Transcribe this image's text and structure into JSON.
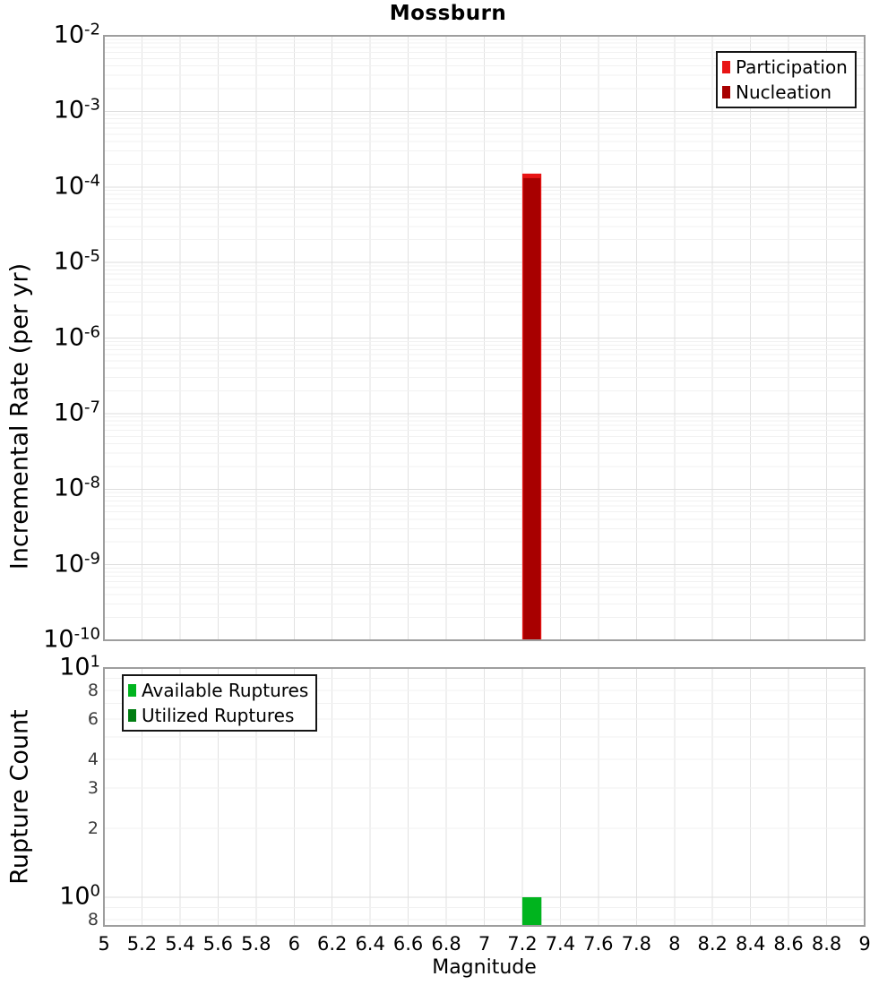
{
  "title": "Mossburn",
  "chart_data": [
    {
      "type": "bar",
      "panel": "incremental-rate",
      "ylabel": "Incremental Rate (per yr)",
      "yscale": "log",
      "ylim": [
        1e-10,
        0.01
      ],
      "xlim": [
        5,
        9
      ],
      "grid": true,
      "legend_position": "top-right",
      "legend": {
        "items": [
          {
            "label": "Participation",
            "color": "#e81414"
          },
          {
            "label": "Nucleation",
            "color": "#a80000"
          }
        ]
      },
      "y_ticks": [
        {
          "text": "10",
          "exp": "-2",
          "v": 0.01
        },
        {
          "text": "10",
          "exp": "-3",
          "v": 0.001
        },
        {
          "text": "10",
          "exp": "-4",
          "v": 0.0001
        },
        {
          "text": "10",
          "exp": "-5",
          "v": 1e-05
        },
        {
          "text": "10",
          "exp": "-6",
          "v": 1e-06
        },
        {
          "text": "10",
          "exp": "-7",
          "v": 1e-07
        },
        {
          "text": "10",
          "exp": "-8",
          "v": 1e-08
        },
        {
          "text": "10",
          "exp": "-9",
          "v": 1e-09
        },
        {
          "text": "10",
          "exp": "-10",
          "v": 1e-10
        }
      ],
      "y_minor_labels": [],
      "series": [
        {
          "name": "Participation",
          "color": "#e81414",
          "bins": [
            {
              "x_center": 7.25,
              "bin_width": 0.1,
              "value": 0.00015
            }
          ]
        },
        {
          "name": "Nucleation",
          "color": "#a80000",
          "bins": [
            {
              "x_center": 7.25,
              "bin_width": 0.1,
              "value": 0.00014
            }
          ]
        }
      ]
    },
    {
      "type": "bar",
      "panel": "rupture-count",
      "ylabel": "Rupture Count",
      "xlabel": "Magnitude",
      "yscale": "log",
      "ylim": [
        0.75,
        10
      ],
      "xlim": [
        5,
        9
      ],
      "grid": true,
      "legend_position": "top-left",
      "legend": {
        "items": [
          {
            "label": "Available Ruptures",
            "color": "#00b41e"
          },
          {
            "label": "Utilized Ruptures",
            "color": "#007d11"
          }
        ]
      },
      "y_ticks": [
        {
          "text": "10",
          "exp": "1",
          "v": 10
        },
        {
          "text": "10",
          "exp": "0",
          "v": 1
        }
      ],
      "y_minor_labels": [
        {
          "text": "8",
          "v": 8
        },
        {
          "text": "6",
          "v": 6
        },
        {
          "text": "4",
          "v": 4
        },
        {
          "text": "3",
          "v": 3
        },
        {
          "text": "2",
          "v": 2
        },
        {
          "text": "8",
          "v": 0.8
        }
      ],
      "x_ticks": [
        {
          "text": "5",
          "v": 5.0
        },
        {
          "text": "5.2",
          "v": 5.2
        },
        {
          "text": "5.4",
          "v": 5.4
        },
        {
          "text": "5.6",
          "v": 5.6
        },
        {
          "text": "5.8",
          "v": 5.8
        },
        {
          "text": "6",
          "v": 6.0
        },
        {
          "text": "6.2",
          "v": 6.2
        },
        {
          "text": "6.4",
          "v": 6.4
        },
        {
          "text": "6.6",
          "v": 6.6
        },
        {
          "text": "6.8",
          "v": 6.8
        },
        {
          "text": "7",
          "v": 7.0
        },
        {
          "text": "7.2",
          "v": 7.2
        },
        {
          "text": "7.4",
          "v": 7.4
        },
        {
          "text": "7.6",
          "v": 7.6
        },
        {
          "text": "7.8",
          "v": 7.8
        },
        {
          "text": "8",
          "v": 8.0
        },
        {
          "text": "8.2",
          "v": 8.2
        },
        {
          "text": "8.4",
          "v": 8.4
        },
        {
          "text": "8.6",
          "v": 8.6
        },
        {
          "text": "8.8",
          "v": 8.8
        },
        {
          "text": "9",
          "v": 9.0
        }
      ],
      "series": [
        {
          "name": "Utilized Ruptures",
          "color": "#007d11",
          "bins": [
            {
              "x_center": 7.25,
              "bin_width": 0.1,
              "value": 1
            }
          ]
        },
        {
          "name": "Available Ruptures",
          "color": "#00b41e",
          "bins": [
            {
              "x_center": 7.25,
              "bin_width": 0.1,
              "value": 1
            }
          ]
        }
      ]
    }
  ],
  "style_colors": {
    "grid_major": "#dedede",
    "grid_minor": "#f1f1f1",
    "grid_vertical": "#e2e2e2",
    "frame": "#9e9e9e",
    "background": "#ffffff"
  }
}
